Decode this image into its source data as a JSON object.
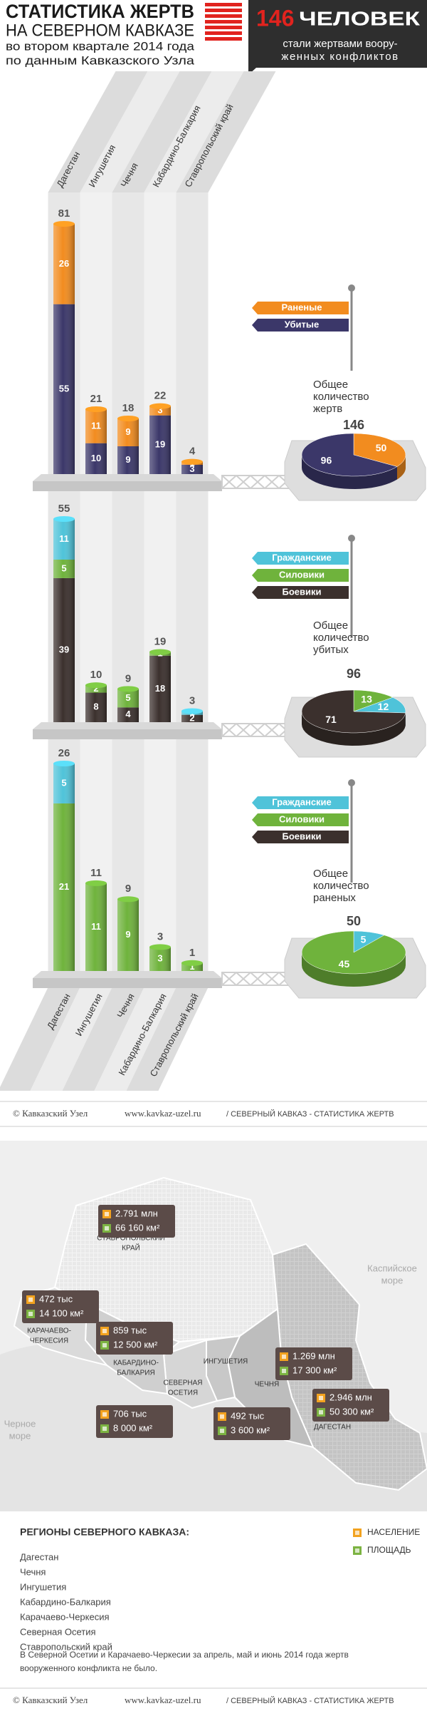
{
  "header": {
    "title": [
      "СТАТИСТИКА ЖЕРТВ",
      "НА СЕВЕРНОМ КАВКАЗЕ"
    ],
    "subtitle": [
      "во втором квартале 2014 года",
      "по данным Кавказского Узла"
    ],
    "total": 146,
    "total_unit": "ЧЕЛОВЕК",
    "total_text": [
      "стали жертвами воору-",
      "женных конфликтов"
    ]
  },
  "chart_data": [
    {
      "type": "stacked-bar",
      "categories": [
        "Дагестан",
        "Ингушетия",
        "Чечня",
        "Кабардино-Балкария",
        "Ставропольский край"
      ],
      "series": [
        {
          "name": "Убитые",
          "color": "#3b3769",
          "values": [
            55,
            10,
            9,
            19,
            3
          ]
        },
        {
          "name": "Раненые",
          "color": "#f28c1f",
          "values": [
            26,
            11,
            9,
            3,
            1
          ]
        }
      ],
      "totals": [
        81,
        21,
        18,
        22,
        4
      ]
    },
    {
      "type": "pie",
      "title": [
        "Общее",
        "количество",
        "жертв"
      ],
      "total": 146,
      "values": [
        50,
        96
      ],
      "colors": [
        "#f28c1f",
        "#3b3769"
      ]
    },
    {
      "type": "stacked-bar",
      "series": [
        {
          "name": "Боевики",
          "color": "#3b302d",
          "values": [
            39,
            8,
            4,
            18,
            2
          ]
        },
        {
          "name": "Силовики",
          "color": "#6fb33c",
          "values": [
            5,
            2,
            5,
            1,
            0
          ]
        },
        {
          "name": "Гражданские",
          "color": "#4fc3d9",
          "values": [
            11,
            0,
            0,
            0,
            1
          ]
        }
      ],
      "totals": [
        55,
        10,
        9,
        19,
        3
      ]
    },
    {
      "type": "pie",
      "title": [
        "Общее",
        "количество",
        "убитых"
      ],
      "total": 96,
      "values": [
        13,
        12,
        71
      ],
      "colors": [
        "#6fb33c",
        "#4fc3d9",
        "#3b302d"
      ]
    },
    {
      "type": "stacked-bar",
      "categories": [
        "Дагестан",
        "Ингушетия",
        "Чечня",
        "Кабардино-Балкария",
        "Ставропольский край"
      ],
      "series": [
        {
          "name": "Боевики",
          "color": "#3b302d",
          "values": [
            0,
            0,
            0,
            0,
            0
          ]
        },
        {
          "name": "Силовики",
          "color": "#6fb33c",
          "values": [
            21,
            11,
            9,
            3,
            1
          ]
        },
        {
          "name": "Гражданские",
          "color": "#4fc3d9",
          "values": [
            5,
            0,
            0,
            0,
            0
          ]
        }
      ],
      "totals": [
        26,
        11,
        9,
        3,
        1
      ]
    },
    {
      "type": "pie",
      "title": [
        "Общее",
        "количество",
        "раненых"
      ],
      "total": 50,
      "values": [
        5,
        45
      ],
      "colors": [
        "#4fc3d9",
        "#6fb33c"
      ]
    }
  ],
  "footer": {
    "copyright": "© Кавказский Узел",
    "url": "www.kavkaz-uzel.ru",
    "section": "/ СЕВЕРНЫЙ КАВКАЗ - СТАТИСТИКА ЖЕРТВ"
  },
  "map": {
    "seas": [
      [
        "Каспийское",
        "море"
      ],
      [
        "Черное",
        "море"
      ]
    ],
    "regions": [
      {
        "name": [
          "СТАВРОПОЛЬСКИЙ",
          "КРАЙ"
        ],
        "population": "2.791 млн",
        "area": "66 160 км²"
      },
      {
        "name": [
          "КАРАЧАЕВО-",
          "ЧЕРКЕСИЯ"
        ],
        "population": "472 тыс",
        "area": "14 100 км²"
      },
      {
        "name": [
          "КАБАРДИНО-",
          "БАЛКАРИЯ"
        ],
        "population": "859 тыс",
        "area": "12 500 км²"
      },
      {
        "name": [
          "ИНГУШЕТИЯ"
        ],
        "population": "492 тыс",
        "area": "3 600 км²"
      },
      {
        "name": [
          "ЧЕЧНЯ"
        ],
        "population": "1.269 млн",
        "area": "17 300 км²"
      },
      {
        "name": [
          "ДАГЕСТАН"
        ],
        "population": "2.946 млн",
        "area": "50 300 км²"
      },
      {
        "name": [
          "СЕВЕРНАЯ",
          "ОСЕТИЯ"
        ],
        "population": "706 тыс",
        "area": "8 000 км²"
      }
    ],
    "legend": [
      "НАСЕЛЕНИЕ",
      "ПЛОЩАДЬ"
    ]
  },
  "regions_list": {
    "title": "РЕГИОНЫ СЕВЕРНОГО КАВКАЗА:",
    "items": [
      "Дагестан",
      "Чечня",
      "Ингушетия",
      "Кабардино-Балкария",
      "Карачаево-Черкесия",
      "Северная Осетия",
      "Ставропольский край"
    ],
    "note": [
      "В Северной Осетии и Карачаево-Черкесии за апрель, май и июнь 2014 года жертв",
      "вооруженного конфликта не было."
    ]
  }
}
